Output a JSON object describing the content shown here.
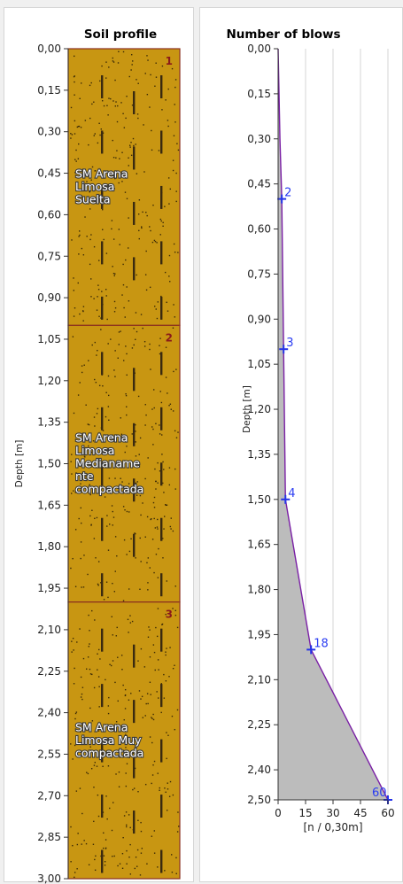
{
  "colors": {
    "soil": "#c89612",
    "soil_border": "#8a2f1f",
    "dot": "#3b2a06",
    "dash": "#3a2a10",
    "line": "#7a1fa5",
    "point": "#2533e8",
    "fill": "#bcbcbc",
    "grid": "#d4d4d4"
  },
  "chart_data": [
    {
      "type": "table",
      "title": "Soil profile",
      "ylabel": "Depth [m]",
      "ylim": [
        0.0,
        3.0
      ],
      "y_ticks": [
        "0,00",
        "0,15",
        "0,30",
        "0,45",
        "0,60",
        "0,75",
        "0,90",
        "1,05",
        "1,20",
        "1,35",
        "1,50",
        "1,65",
        "1,80",
        "1,95",
        "2,10",
        "2,25",
        "2,40",
        "2,55",
        "2,70",
        "2,85",
        "3,00"
      ],
      "layers": [
        {
          "number": "1",
          "top": 0.0,
          "bottom": 1.0,
          "lines": [
            "SM Arena",
            "Limosa",
            "Suelta"
          ]
        },
        {
          "number": "2",
          "top": 1.0,
          "bottom": 2.0,
          "lines": [
            "SM Arena",
            "Limosa",
            "Medianame",
            "nte",
            "compactada"
          ]
        },
        {
          "number": "3",
          "top": 2.0,
          "bottom": 3.0,
          "lines": [
            "SM Arena",
            "Limosa Muy",
            "compactada"
          ]
        }
      ]
    },
    {
      "type": "area",
      "title": "Number of blows",
      "ylabel": "Depth [m]",
      "xlabel": "[n / 0,30m]",
      "ylim": [
        0.0,
        2.5
      ],
      "xlim": [
        0,
        60
      ],
      "x_ticks": [
        "0",
        "15",
        "30",
        "45",
        "60"
      ],
      "y_ticks": [
        "0,00",
        "0,15",
        "0,30",
        "0,45",
        "0,60",
        "0,75",
        "0,90",
        "1,05",
        "1,20",
        "1,35",
        "1,50",
        "1,65",
        "1,80",
        "1,95",
        "2,10",
        "2,25",
        "2,40",
        "2,50"
      ],
      "grid": true,
      "points": [
        {
          "depth": 0.5,
          "blows": 2,
          "label": "2"
        },
        {
          "depth": 1.0,
          "blows": 3,
          "label": "3"
        },
        {
          "depth": 1.5,
          "blows": 4,
          "label": "4"
        },
        {
          "depth": 2.0,
          "blows": 18,
          "label": "18"
        },
        {
          "depth": 2.5,
          "blows": 60,
          "label": "60"
        }
      ]
    }
  ]
}
